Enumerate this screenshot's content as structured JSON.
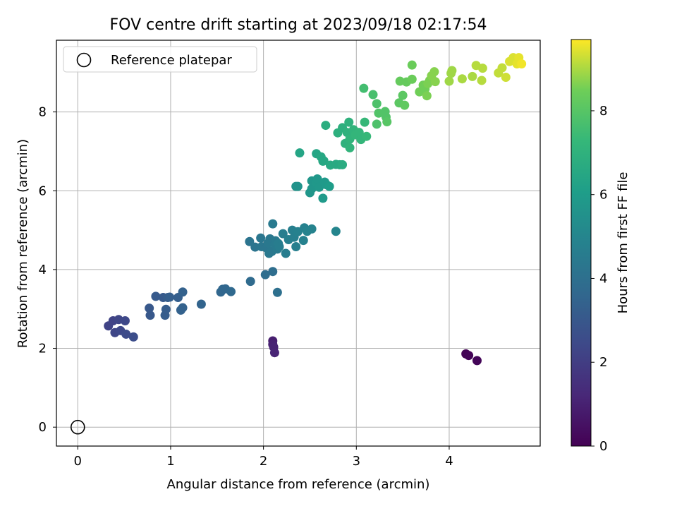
{
  "chart_data": {
    "type": "scatter",
    "title": "FOV centre drift starting at 2023/09/18 02:17:54",
    "xlabel": "Angular distance from reference (arcmin)",
    "ylabel": "Rotation from reference (arcmin)",
    "xlim": [
      -0.23,
      4.98
    ],
    "ylim": [
      -0.48,
      9.82
    ],
    "xticks": [
      0,
      1,
      2,
      3,
      4
    ],
    "yticks": [
      0,
      2,
      4,
      6,
      8
    ],
    "grid": true,
    "legend": {
      "placement": "top-left",
      "entries": [
        "Reference platepar"
      ]
    },
    "reference_point": {
      "label": "Reference platepar",
      "x": 0,
      "y": 0
    },
    "colorbar": {
      "label": "Hours from first FF file",
      "min": 0,
      "max": 9.7,
      "ticks": [
        0,
        2,
        4,
        6,
        8
      ],
      "colormap": "viridis"
    },
    "points": [
      [
        4.18,
        1.86,
        0.05
      ],
      [
        4.21,
        1.82,
        0.1
      ],
      [
        4.3,
        1.69,
        0.15
      ],
      [
        2.1,
        2.19,
        0.9
      ],
      [
        2.1,
        2.1,
        1.0
      ],
      [
        2.11,
        2.03,
        1.05
      ],
      [
        2.12,
        1.89,
        1.1
      ],
      [
        0.33,
        2.57,
        2.2
      ],
      [
        0.38,
        2.7,
        2.2
      ],
      [
        0.4,
        2.4,
        2.3
      ],
      [
        0.44,
        2.73,
        2.3
      ],
      [
        0.46,
        2.45,
        2.4
      ],
      [
        0.51,
        2.7,
        2.4
      ],
      [
        0.52,
        2.36,
        2.5
      ],
      [
        0.6,
        2.29,
        2.6
      ],
      [
        0.77,
        3.02,
        3.0
      ],
      [
        0.78,
        2.84,
        3.0
      ],
      [
        0.84,
        3.32,
        3.1
      ],
      [
        0.92,
        3.29,
        3.1
      ],
      [
        0.94,
        2.84,
        3.2
      ],
      [
        0.95,
        2.99,
        3.2
      ],
      [
        0.97,
        3.29,
        3.2
      ],
      [
        0.99,
        3.3,
        3.3
      ],
      [
        1.08,
        3.29,
        3.3
      ],
      [
        1.11,
        2.97,
        3.4
      ],
      [
        1.13,
        3.03,
        3.4
      ],
      [
        1.13,
        3.43,
        3.4
      ],
      [
        1.33,
        3.12,
        3.5
      ],
      [
        1.54,
        3.43,
        3.6
      ],
      [
        1.56,
        3.5,
        3.6
      ],
      [
        1.59,
        3.51,
        3.6
      ],
      [
        1.65,
        3.44,
        3.7
      ],
      [
        1.86,
        3.7,
        3.8
      ],
      [
        2.02,
        3.87,
        3.9
      ],
      [
        2.1,
        3.95,
        3.9
      ],
      [
        2.15,
        3.42,
        4.0
      ],
      [
        1.85,
        4.71,
        4.2
      ],
      [
        1.91,
        4.57,
        4.2
      ],
      [
        1.97,
        4.8,
        4.3
      ],
      [
        1.98,
        4.58,
        4.3
      ],
      [
        2.03,
        4.55,
        4.3
      ],
      [
        2.05,
        4.67,
        4.4
      ],
      [
        2.06,
        4.41,
        4.4
      ],
      [
        2.07,
        4.78,
        4.4
      ],
      [
        2.09,
        4.46,
        4.4
      ],
      [
        2.1,
        5.16,
        4.5
      ],
      [
        2.12,
        4.64,
        4.5
      ],
      [
        2.13,
        4.73,
        4.5
      ],
      [
        2.15,
        4.52,
        4.5
      ],
      [
        2.16,
        4.66,
        4.6
      ],
      [
        2.17,
        4.58,
        4.6
      ],
      [
        2.21,
        4.91,
        4.6
      ],
      [
        2.24,
        4.41,
        4.6
      ],
      [
        2.27,
        4.76,
        4.7
      ],
      [
        2.31,
        5.0,
        4.7
      ],
      [
        2.33,
        4.82,
        4.7
      ],
      [
        2.35,
        4.58,
        4.7
      ],
      [
        2.37,
        4.96,
        4.8
      ],
      [
        2.43,
        4.74,
        4.8
      ],
      [
        2.44,
        5.06,
        4.8
      ],
      [
        2.47,
        4.97,
        4.9
      ],
      [
        2.52,
        5.03,
        4.9
      ],
      [
        2.78,
        4.97,
        5.0
      ],
      [
        2.35,
        6.11,
        5.6
      ],
      [
        2.37,
        6.11,
        5.6
      ],
      [
        2.5,
        5.95,
        5.7
      ],
      [
        2.52,
        6.05,
        5.7
      ],
      [
        2.52,
        6.25,
        5.7
      ],
      [
        2.57,
        6.2,
        5.8
      ],
      [
        2.58,
        6.3,
        5.8
      ],
      [
        2.6,
        6.09,
        5.8
      ],
      [
        2.64,
        5.81,
        5.9
      ],
      [
        2.66,
        6.22,
        5.9
      ],
      [
        2.68,
        6.15,
        5.9
      ],
      [
        2.71,
        6.11,
        6.0
      ],
      [
        2.39,
        6.96,
        6.4
      ],
      [
        2.57,
        6.94,
        6.4
      ],
      [
        2.62,
        6.86,
        6.5
      ],
      [
        2.64,
        6.75,
        6.5
      ],
      [
        2.65,
        6.76,
        6.5
      ],
      [
        2.72,
        6.65,
        6.6
      ],
      [
        2.78,
        6.67,
        6.6
      ],
      [
        2.82,
        6.66,
        6.6
      ],
      [
        2.85,
        6.66,
        6.7
      ],
      [
        2.67,
        7.66,
        6.8
      ],
      [
        2.8,
        7.47,
        6.9
      ],
      [
        2.85,
        7.6,
        6.9
      ],
      [
        2.88,
        7.2,
        7.0
      ],
      [
        2.9,
        7.48,
        7.0
      ],
      [
        2.92,
        7.74,
        7.0
      ],
      [
        2.93,
        7.09,
        7.1
      ],
      [
        2.93,
        7.31,
        7.1
      ],
      [
        2.97,
        7.55,
        7.1
      ],
      [
        2.99,
        7.42,
        7.2
      ],
      [
        3.03,
        7.48,
        7.2
      ],
      [
        3.05,
        7.3,
        7.2
      ],
      [
        3.11,
        7.38,
        7.3
      ],
      [
        3.09,
        7.74,
        7.3
      ],
      [
        3.08,
        8.6,
        7.6
      ],
      [
        3.18,
        8.44,
        7.7
      ],
      [
        3.22,
        7.69,
        7.8
      ],
      [
        3.22,
        8.21,
        7.8
      ],
      [
        3.24,
        7.97,
        7.9
      ],
      [
        3.31,
        8.01,
        7.9
      ],
      [
        3.32,
        7.87,
        7.9
      ],
      [
        3.33,
        7.75,
        8.0
      ],
      [
        3.46,
        8.23,
        8.1
      ],
      [
        3.5,
        8.42,
        8.1
      ],
      [
        3.52,
        8.17,
        8.2
      ],
      [
        3.47,
        8.78,
        8.3
      ],
      [
        3.54,
        8.76,
        8.3
      ],
      [
        3.6,
        8.83,
        8.4
      ],
      [
        3.6,
        9.19,
        8.4
      ],
      [
        3.68,
        8.51,
        8.5
      ],
      [
        3.72,
        8.68,
        8.5
      ],
      [
        3.74,
        8.58,
        8.5
      ],
      [
        3.76,
        8.41,
        8.6
      ],
      [
        3.77,
        8.72,
        8.6
      ],
      [
        3.79,
        8.8,
        8.6
      ],
      [
        3.81,
        8.92,
        8.7
      ],
      [
        3.84,
        9.02,
        8.7
      ],
      [
        3.85,
        8.77,
        8.7
      ],
      [
        4.0,
        8.78,
        8.9
      ],
      [
        4.02,
        8.98,
        8.9
      ],
      [
        4.03,
        9.05,
        8.9
      ],
      [
        4.14,
        8.84,
        9.0
      ],
      [
        4.25,
        8.9,
        9.0
      ],
      [
        4.29,
        9.18,
        9.1
      ],
      [
        4.35,
        8.8,
        9.1
      ],
      [
        4.36,
        9.11,
        9.1
      ],
      [
        4.53,
        8.99,
        9.2
      ],
      [
        4.57,
        9.12,
        9.2
      ],
      [
        4.61,
        8.88,
        9.3
      ],
      [
        4.65,
        9.28,
        9.4
      ],
      [
        4.69,
        9.38,
        9.4
      ],
      [
        4.71,
        9.3,
        9.4
      ],
      [
        4.73,
        9.22,
        9.5
      ],
      [
        4.75,
        9.38,
        9.5
      ],
      [
        4.78,
        9.22,
        9.6
      ]
    ]
  }
}
